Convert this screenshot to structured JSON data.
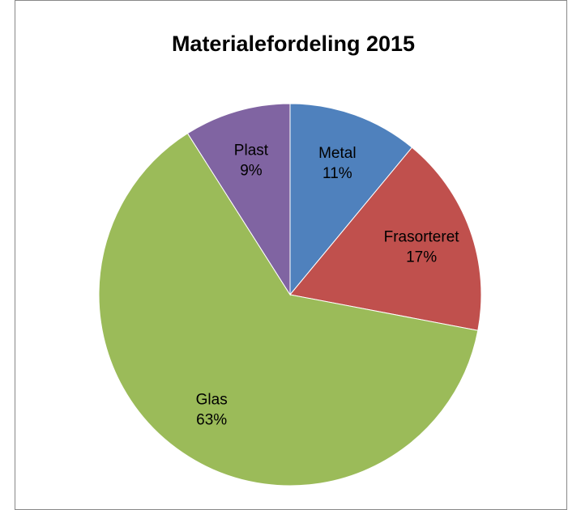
{
  "chart_data": {
    "type": "pie",
    "title": "Materialefordeling 2015",
    "categories": [
      "Metal",
      "Frasorteret",
      "Glas",
      "Plast"
    ],
    "values": [
      11,
      17,
      63,
      9
    ],
    "value_labels": [
      "11%",
      "17%",
      "63%",
      "9%"
    ],
    "colors": [
      "#4f81bd",
      "#c0504d",
      "#9bbb59",
      "#8064a2"
    ]
  }
}
